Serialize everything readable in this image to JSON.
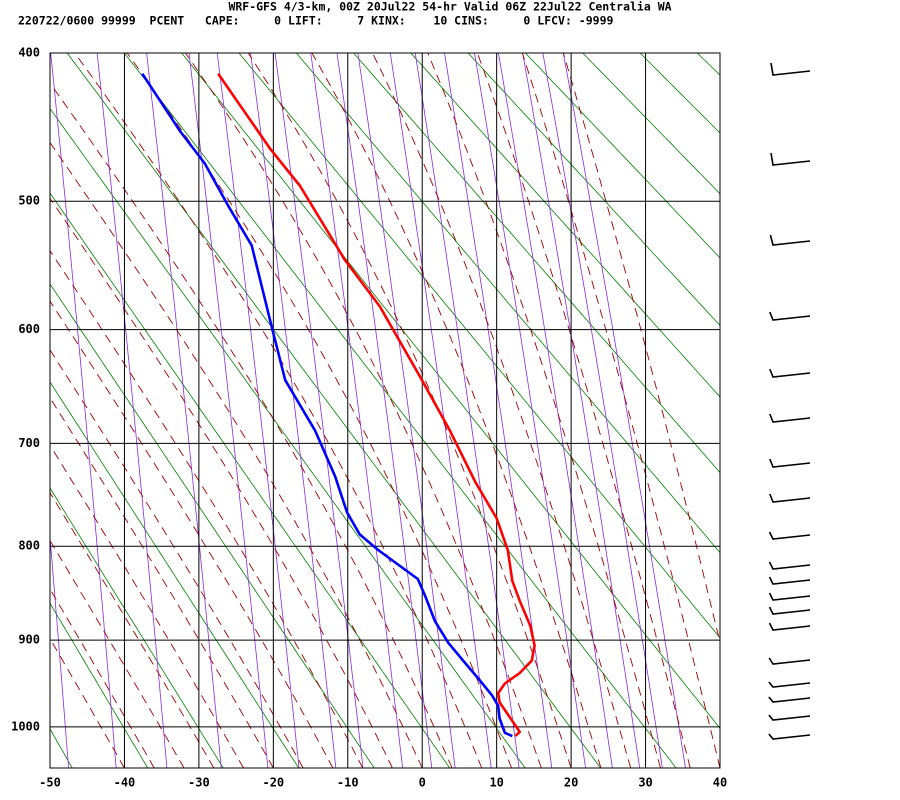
{
  "chart_data": {
    "type": "line",
    "title": "WRF-GFS 4/3-km, 00Z 20Jul22 54-hr Valid 06Z 22Jul22 Centralia WA",
    "subtitle": "220722/0600 99999  PCENT   CAPE:     0 LIFT:     7 KINX:    10 CINS:     0 LFCV: -9999",
    "xlim": [
      -50,
      40
    ],
    "xticks": [
      -50,
      -40,
      -30,
      -20,
      -10,
      0,
      10,
      20,
      30,
      40
    ],
    "ylim": [
      400,
      1050
    ],
    "yticks": [
      400,
      500,
      600,
      700,
      800,
      900,
      1000
    ],
    "grid": true,
    "series": [
      {
        "color": "#ff0000",
        "x": [
          -27.4,
          -20.4,
          -16.4,
          -10.4,
          -5.7,
          -0.3,
          3.7,
          7.1,
          10.0,
          11.5,
          12.1,
          13.1,
          14.5,
          15.1,
          14.7,
          13.1,
          11.1,
          10.2,
          10.4,
          11.8,
          13.1,
          12.5
        ],
        "values": [
          413,
          463,
          489,
          544,
          581,
          640,
          688,
          736,
          772,
          804,
          836,
          857,
          884,
          906,
          923,
          937,
          949,
          960,
          971,
          989,
          1006,
          1011
        ]
      },
      {
        "color": "#0000ff",
        "x": [
          -37.6,
          -32.5,
          -29.2,
          -26.1,
          -22.9,
          -20.2,
          -18.4,
          -14.4,
          -11.7,
          -10.1,
          -8.4,
          -5.9,
          -0.6,
          0.4,
          1.7,
          3.5,
          5.7,
          7.8,
          9.4,
          10.2,
          10.4,
          11.1,
          12.1
        ],
        "values": [
          413,
          451,
          473,
          503,
          533,
          598,
          643,
          688,
          731,
          766,
          788,
          804,
          834,
          852,
          879,
          903,
          925,
          946,
          963,
          975,
          990,
          1007,
          1011
        ]
      }
    ]
  }
}
